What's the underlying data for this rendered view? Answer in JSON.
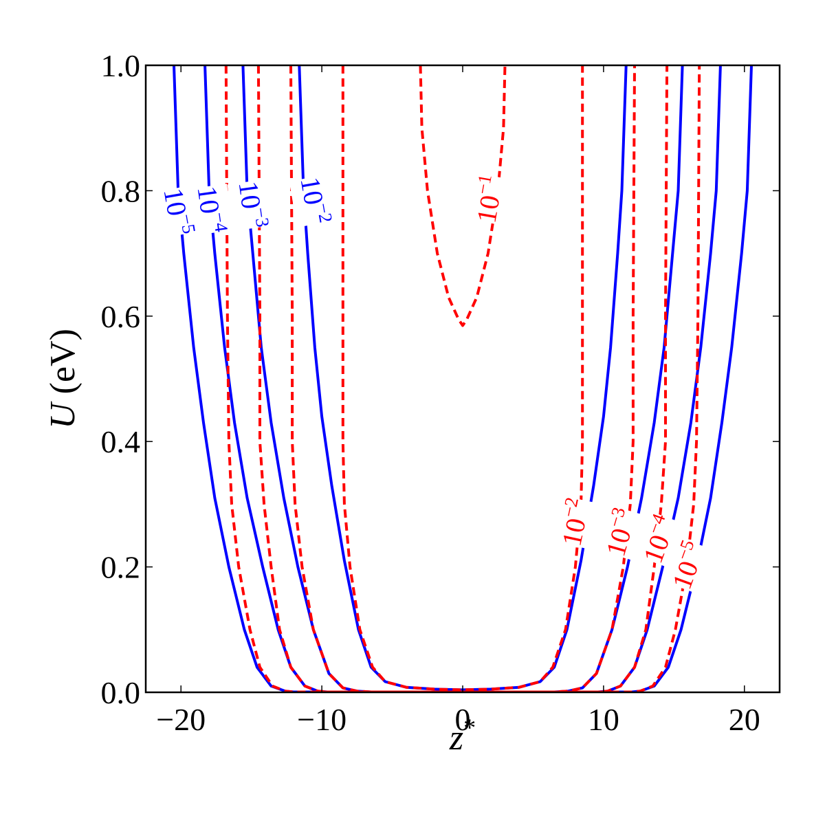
{
  "chart_data": {
    "type": "line",
    "xlabel": "z*",
    "ylabel": "U (eV)",
    "xlim": [
      -22.5,
      22.5
    ],
    "ylim": [
      0.0,
      1.0
    ],
    "x_ticks": [
      -20,
      -10,
      0,
      10,
      20
    ],
    "x_tick_labels": [
      "−20",
      "−10",
      "0",
      "10",
      "20"
    ],
    "y_ticks": [
      0.0,
      0.2,
      0.4,
      0.6,
      0.8,
      1.0
    ],
    "y_tick_labels": [
      "0.0",
      "0.2",
      "0.4",
      "0.6",
      "0.8",
      "1.0"
    ],
    "grid": false,
    "colors": {
      "solid": "#0000ff",
      "dashed": "#ff0000",
      "axes": "#000000"
    },
    "series": [
      {
        "style": "solid",
        "label_base": "10",
        "label_exp": "−2",
        "points": [
          [
            -11.6,
            1.0
          ],
          [
            -11.3,
            0.8
          ],
          [
            -11.0,
            0.7
          ],
          [
            -10.5,
            0.55
          ],
          [
            -10.0,
            0.44
          ],
          [
            -9.3,
            0.33
          ],
          [
            -8.4,
            0.21
          ],
          [
            -7.4,
            0.1
          ],
          [
            -6.5,
            0.04
          ],
          [
            -5.5,
            0.017
          ],
          [
            -4.0,
            0.008
          ],
          [
            -2.0,
            0.005
          ],
          [
            0.0,
            0.004
          ],
          [
            2.0,
            0.005
          ],
          [
            4.0,
            0.008
          ],
          [
            5.5,
            0.017
          ],
          [
            6.5,
            0.04
          ],
          [
            7.4,
            0.1
          ],
          [
            8.4,
            0.21
          ],
          [
            9.3,
            0.33
          ],
          [
            10.0,
            0.44
          ],
          [
            10.5,
            0.55
          ],
          [
            11.0,
            0.7
          ],
          [
            11.3,
            0.8
          ],
          [
            11.6,
            1.0
          ]
        ]
      },
      {
        "style": "solid",
        "label_base": "10",
        "label_exp": "−3",
        "points": [
          [
            -15.6,
            1.0
          ],
          [
            -15.3,
            0.8
          ],
          [
            -14.9,
            0.7
          ],
          [
            -14.3,
            0.55
          ],
          [
            -13.6,
            0.43
          ],
          [
            -12.7,
            0.31
          ],
          [
            -11.7,
            0.2
          ],
          [
            -10.6,
            0.1
          ],
          [
            -9.5,
            0.03
          ],
          [
            -8.5,
            0.007
          ],
          [
            -7.5,
            0.002
          ],
          [
            -6.5,
            0.0005
          ],
          [
            6.5,
            0.0005
          ],
          [
            7.5,
            0.002
          ],
          [
            8.5,
            0.007
          ],
          [
            9.5,
            0.03
          ],
          [
            10.6,
            0.1
          ],
          [
            11.7,
            0.2
          ],
          [
            12.7,
            0.31
          ],
          [
            13.6,
            0.43
          ],
          [
            14.3,
            0.55
          ],
          [
            14.9,
            0.7
          ],
          [
            15.3,
            0.8
          ],
          [
            15.6,
            1.0
          ]
        ]
      },
      {
        "style": "solid",
        "label_base": "10",
        "label_exp": "−4",
        "points": [
          [
            -18.3,
            1.0
          ],
          [
            -18.0,
            0.8
          ],
          [
            -17.6,
            0.7
          ],
          [
            -16.9,
            0.55
          ],
          [
            -16.2,
            0.43
          ],
          [
            -15.3,
            0.31
          ],
          [
            -14.2,
            0.2
          ],
          [
            -13.1,
            0.1
          ],
          [
            -12.2,
            0.04
          ],
          [
            -11.2,
            0.01
          ],
          [
            -10.3,
            0.002
          ],
          [
            -9.6,
            0.0005
          ],
          [
            9.6,
            0.0005
          ],
          [
            10.3,
            0.002
          ],
          [
            11.2,
            0.01
          ],
          [
            12.2,
            0.04
          ],
          [
            13.1,
            0.1
          ],
          [
            14.2,
            0.2
          ],
          [
            15.3,
            0.31
          ],
          [
            16.2,
            0.43
          ],
          [
            16.9,
            0.55
          ],
          [
            17.6,
            0.7
          ],
          [
            18.0,
            0.8
          ],
          [
            18.3,
            1.0
          ]
        ]
      },
      {
        "style": "solid",
        "label_base": "10",
        "label_exp": "−5",
        "points": [
          [
            -20.5,
            1.0
          ],
          [
            -20.2,
            0.8
          ],
          [
            -19.8,
            0.7
          ],
          [
            -19.1,
            0.55
          ],
          [
            -18.4,
            0.43
          ],
          [
            -17.6,
            0.31
          ],
          [
            -16.6,
            0.2
          ],
          [
            -15.5,
            0.1
          ],
          [
            -14.6,
            0.04
          ],
          [
            -13.6,
            0.01
          ],
          [
            -12.6,
            0.002
          ],
          [
            -12.0,
            0.0005
          ],
          [
            12.0,
            0.0005
          ],
          [
            12.6,
            0.002
          ],
          [
            13.6,
            0.01
          ],
          [
            14.6,
            0.04
          ],
          [
            15.5,
            0.1
          ],
          [
            16.6,
            0.2
          ],
          [
            17.6,
            0.31
          ],
          [
            18.4,
            0.43
          ],
          [
            19.1,
            0.55
          ],
          [
            19.8,
            0.7
          ],
          [
            20.2,
            0.8
          ],
          [
            20.5,
            1.0
          ]
        ]
      },
      {
        "style": "dashed",
        "label_base": "10",
        "label_exp": "−1",
        "points": [
          [
            -3.0,
            1.0
          ],
          [
            -2.9,
            0.9
          ],
          [
            -2.5,
            0.8
          ],
          [
            -1.8,
            0.7
          ],
          [
            -1.0,
            0.63
          ],
          [
            -0.3,
            0.595
          ],
          [
            0.0,
            0.585
          ],
          [
            0.3,
            0.595
          ],
          [
            1.0,
            0.63
          ],
          [
            1.8,
            0.7
          ],
          [
            2.5,
            0.8
          ],
          [
            2.9,
            0.9
          ],
          [
            3.0,
            1.0
          ]
        ]
      },
      {
        "style": "dashed",
        "label_base": "10",
        "label_exp": "−2",
        "points": [
          [
            -8.5,
            1.0
          ],
          [
            -8.5,
            0.6
          ],
          [
            -8.5,
            0.4
          ],
          [
            -8.4,
            0.3
          ],
          [
            -8.0,
            0.2
          ],
          [
            -7.3,
            0.1
          ],
          [
            -6.4,
            0.04
          ],
          [
            -5.5,
            0.017
          ],
          [
            -4.0,
            0.008
          ],
          [
            -2.0,
            0.005
          ],
          [
            0.0,
            0.004
          ],
          [
            2.0,
            0.005
          ],
          [
            4.0,
            0.008
          ],
          [
            5.5,
            0.017
          ],
          [
            6.4,
            0.04
          ],
          [
            7.3,
            0.1
          ],
          [
            8.0,
            0.2
          ],
          [
            8.4,
            0.3
          ],
          [
            8.5,
            0.4
          ],
          [
            8.5,
            0.6
          ],
          [
            8.5,
            1.0
          ]
        ]
      },
      {
        "style": "dashed",
        "label_base": "10",
        "label_exp": "−3",
        "points": [
          [
            -12.2,
            1.0
          ],
          [
            -12.1,
            0.6
          ],
          [
            -12.1,
            0.4
          ],
          [
            -11.9,
            0.3
          ],
          [
            -11.4,
            0.2
          ],
          [
            -10.6,
            0.1
          ],
          [
            -9.5,
            0.03
          ],
          [
            -8.5,
            0.007
          ],
          [
            -7.5,
            0.002
          ],
          [
            -6.5,
            0.0005
          ],
          [
            6.5,
            0.0005
          ],
          [
            7.5,
            0.002
          ],
          [
            8.5,
            0.007
          ],
          [
            9.5,
            0.03
          ],
          [
            10.6,
            0.1
          ],
          [
            11.4,
            0.2
          ],
          [
            11.9,
            0.3
          ],
          [
            12.1,
            0.4
          ],
          [
            12.1,
            0.6
          ],
          [
            12.2,
            1.0
          ]
        ]
      },
      {
        "style": "dashed",
        "label_base": "10",
        "label_exp": "−4",
        "points": [
          [
            -14.5,
            1.0
          ],
          [
            -14.4,
            0.6
          ],
          [
            -14.4,
            0.4
          ],
          [
            -14.1,
            0.3
          ],
          [
            -13.6,
            0.2
          ],
          [
            -13.0,
            0.1
          ],
          [
            -12.2,
            0.04
          ],
          [
            -11.2,
            0.01
          ],
          [
            -10.3,
            0.002
          ],
          [
            -9.6,
            0.0005
          ],
          [
            9.6,
            0.0005
          ],
          [
            10.3,
            0.002
          ],
          [
            11.2,
            0.01
          ],
          [
            12.2,
            0.04
          ],
          [
            13.0,
            0.1
          ],
          [
            13.6,
            0.2
          ],
          [
            14.1,
            0.3
          ],
          [
            14.4,
            0.4
          ],
          [
            14.4,
            0.6
          ],
          [
            14.5,
            1.0
          ]
        ]
      },
      {
        "style": "dashed",
        "label_base": "10",
        "label_exp": "−5",
        "points": [
          [
            -16.8,
            1.0
          ],
          [
            -16.7,
            0.6
          ],
          [
            -16.6,
            0.4
          ],
          [
            -16.4,
            0.3
          ],
          [
            -15.9,
            0.2
          ],
          [
            -15.1,
            0.1
          ],
          [
            -14.4,
            0.04
          ],
          [
            -13.5,
            0.01
          ],
          [
            -12.6,
            0.002
          ],
          [
            -12.0,
            0.0005
          ],
          [
            12.0,
            0.0005
          ],
          [
            12.6,
            0.002
          ],
          [
            13.5,
            0.01
          ],
          [
            14.4,
            0.04
          ],
          [
            15.1,
            0.1
          ],
          [
            15.9,
            0.2
          ],
          [
            16.4,
            0.3
          ],
          [
            16.6,
            0.4
          ],
          [
            16.7,
            0.6
          ],
          [
            16.8,
            1.0
          ]
        ]
      }
    ]
  }
}
